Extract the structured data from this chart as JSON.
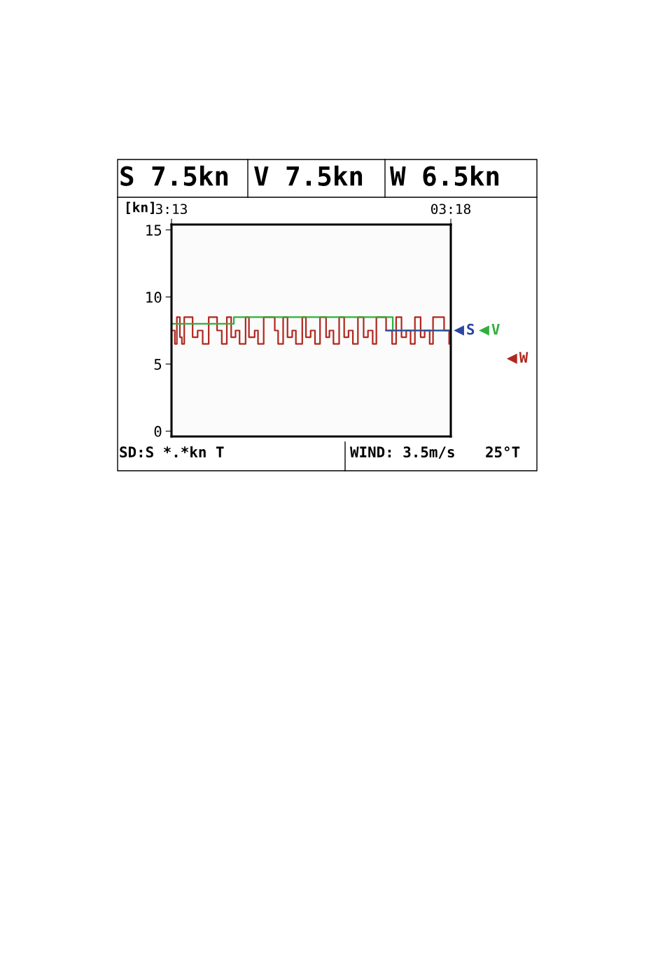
{
  "chart_data": {
    "type": "step",
    "annotations": [
      "S 7.5kn",
      "V 7.5kn",
      "W 6.5kn",
      "SD:S *.*kn T",
      "WIND: 3.5m/s",
      "25°T"
    ],
    "ylabel": "[kn]",
    "xlim": [
      3.2167,
      3.3
    ],
    "xticks": [
      {
        "value": 3.2167,
        "label": "3:13"
      },
      {
        "value": 3.3,
        "label": "03:18"
      }
    ],
    "ylim": [
      -0.4,
      15.4
    ],
    "yticks": [
      0,
      5,
      10,
      15
    ],
    "grid": false,
    "legend": "right",
    "series": [
      {
        "name": "S",
        "color": "#2b45a0",
        "x": [
          3.2807,
          3.3
        ],
        "values": [
          7.5,
          7.5
        ]
      },
      {
        "name": "V",
        "color": "#2fb03c",
        "x": [
          3.2167,
          3.2353,
          3.2827,
          3.3
        ],
        "values": [
          8.0,
          8.5,
          7.5,
          7.5
        ]
      },
      {
        "name": "W",
        "color": "#b0281f",
        "x": [
          3.2168,
          3.2177,
          3.2183,
          3.2192,
          3.2198,
          3.2205,
          3.223,
          3.2245,
          3.226,
          3.2278,
          3.2303,
          3.2317,
          3.2332,
          3.2345,
          3.2358,
          3.237,
          3.2388,
          3.2398,
          3.2415,
          3.2425,
          3.2442,
          3.2475,
          3.2485,
          3.25,
          3.2513,
          3.2527,
          3.2538,
          3.2557,
          3.2568,
          3.2582,
          3.2595,
          3.261,
          3.2628,
          3.2638,
          3.265,
          3.2667,
          3.2682,
          3.2695,
          3.2708,
          3.2723,
          3.274,
          3.2753,
          3.2767,
          3.2778,
          3.2807,
          3.2825,
          3.2837,
          3.2853,
          3.2867,
          3.288,
          3.2893,
          3.291,
          3.2922,
          3.2937,
          3.2947,
          3.298,
          3.2995,
          3.3
        ],
        "values": [
          7.5,
          6.5,
          8.5,
          7.0,
          6.5,
          8.5,
          7.0,
          7.5,
          6.5,
          8.5,
          7.5,
          6.5,
          8.5,
          7.0,
          7.5,
          6.5,
          8.5,
          7.0,
          7.5,
          6.5,
          8.5,
          7.5,
          6.5,
          8.5,
          7.0,
          7.5,
          6.5,
          8.5,
          7.0,
          7.5,
          6.5,
          8.5,
          7.0,
          7.5,
          6.5,
          8.5,
          7.0,
          7.5,
          6.5,
          8.5,
          7.0,
          7.5,
          6.5,
          8.5,
          7.5,
          6.5,
          8.5,
          7.0,
          7.5,
          6.5,
          8.5,
          7.0,
          7.5,
          6.5,
          8.5,
          7.5,
          6.5,
          6.5
        ]
      }
    ]
  }
}
